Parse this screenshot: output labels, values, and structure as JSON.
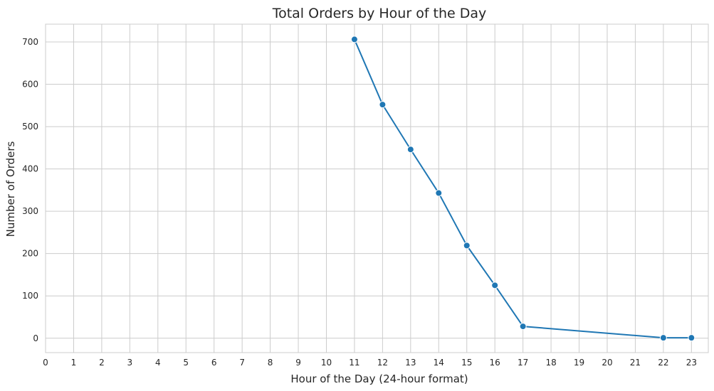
{
  "chart_data": {
    "type": "line",
    "title": "Total Orders by Hour of the Day",
    "xlabel": "Hour of the Day (24-hour format)",
    "ylabel": "Number of Orders",
    "x": [
      11,
      12,
      13,
      14,
      15,
      16,
      17,
      22,
      23
    ],
    "series": [
      {
        "name": "",
        "values": [
          706,
          552,
          446,
          343,
          219,
          125,
          28,
          1,
          1
        ],
        "color": "#1f77b4"
      }
    ],
    "xlim": [
      0,
      23.6
    ],
    "ylim": [
      -34,
      742
    ],
    "xticks": [
      0,
      1,
      2,
      3,
      4,
      5,
      6,
      7,
      8,
      9,
      10,
      11,
      12,
      13,
      14,
      15,
      16,
      17,
      18,
      19,
      20,
      21,
      22,
      23
    ],
    "yticks": [
      0,
      100,
      200,
      300,
      400,
      500,
      600,
      700
    ],
    "grid": true,
    "legend": "none"
  }
}
